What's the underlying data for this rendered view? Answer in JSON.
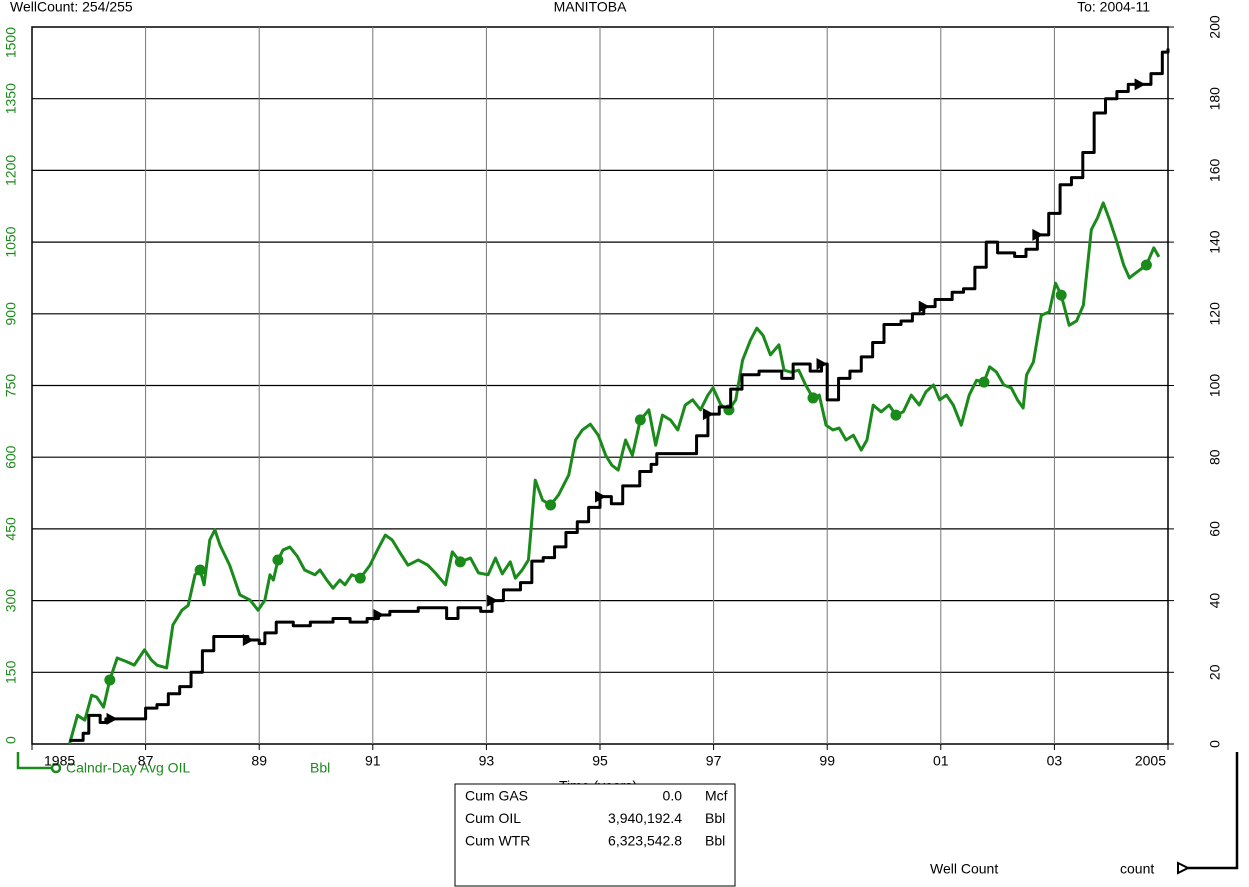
{
  "chart_data": {
    "type": "line",
    "title": "MANITOBA",
    "header_left": "WellCount:  254/255",
    "header_right": "To:  2004-11",
    "xlabel": "Time (years)",
    "xlim": [
      1985,
      2005
    ],
    "xticks": [
      1985,
      {
        "value": 1987,
        "label": "87"
      },
      {
        "value": 1989,
        "label": "89"
      },
      {
        "value": 1991,
        "label": "91"
      },
      {
        "value": 1993,
        "label": "93"
      },
      {
        "value": 1995,
        "label": "95"
      },
      {
        "value": 1997,
        "label": "97"
      },
      {
        "value": 1999,
        "label": "99"
      },
      {
        "value": 2001,
        "label": "01"
      },
      {
        "value": 2003,
        "label": "03"
      },
      2005
    ],
    "ylim": [
      0,
      1500
    ],
    "yticks": [
      0,
      150,
      300,
      450,
      600,
      750,
      900,
      1050,
      1200,
      1350,
      1500
    ],
    "y2lim": [
      0,
      200
    ],
    "y2ticks": [
      0,
      20,
      40,
      60,
      80,
      100,
      120,
      140,
      160,
      180,
      200
    ],
    "grid": true,
    "series": [
      {
        "name": "Calndr-Day Avg OIL",
        "unit": "Bbl",
        "color": "#1a8a1a",
        "marker": "circle",
        "x": [
          1985.66,
          1985.8,
          1985.93,
          1986.05,
          1986.14,
          1986.26,
          1986.37,
          1986.5,
          1986.67,
          1986.8,
          1986.98,
          1987.1,
          1987.2,
          1987.37,
          1987.48,
          1987.64,
          1987.75,
          1987.87,
          1987.96,
          1988.03,
          1988.13,
          1988.22,
          1988.31,
          1988.48,
          1988.66,
          1988.84,
          1988.98,
          1989.1,
          1989.19,
          1989.25,
          1989.33,
          1989.42,
          1989.54,
          1989.67,
          1989.8,
          1989.98,
          1990.07,
          1990.19,
          1990.3,
          1990.42,
          1990.51,
          1990.63,
          1990.78,
          1990.95,
          1991.1,
          1991.22,
          1991.34,
          1991.48,
          1991.62,
          1991.8,
          1991.97,
          1992.1,
          1992.28,
          1992.4,
          1992.54,
          1992.72,
          1992.86,
          1993.03,
          1993.16,
          1993.28,
          1993.42,
          1993.51,
          1993.63,
          1993.74,
          1993.86,
          1993.99,
          1994.13,
          1994.27,
          1994.45,
          1994.57,
          1994.69,
          1994.83,
          1994.97,
          1995.1,
          1995.21,
          1995.32,
          1995.45,
          1995.57,
          1995.71,
          1995.86,
          1995.98,
          1996.1,
          1996.24,
          1996.37,
          1996.5,
          1996.63,
          1996.77,
          1996.9,
          1996.99,
          1997.13,
          1997.27,
          1997.39,
          1997.51,
          1997.65,
          1997.76,
          1997.87,
          1998.0,
          1998.15,
          1998.24,
          1998.36,
          1998.5,
          1998.62,
          1998.75,
          1998.86,
          1998.98,
          1999.1,
          1999.21,
          1999.33,
          1999.46,
          1999.6,
          1999.7,
          1999.81,
          1999.95,
          2000.09,
          2000.21,
          2000.34,
          2000.48,
          2000.62,
          2000.74,
          2000.87,
          2000.98,
          2001.1,
          2001.22,
          2001.36,
          2001.5,
          2001.63,
          2001.76,
          2001.86,
          2001.98,
          2002.11,
          2002.24,
          2002.35,
          2002.45,
          2002.51,
          2002.63,
          2002.77,
          2002.91,
          2003.02,
          2003.12,
          2003.26,
          2003.39,
          2003.51,
          2003.65,
          2003.76,
          2003.86,
          2003.97,
          2004.09,
          2004.22,
          2004.32,
          2004.45,
          2004.62,
          2004.75,
          2004.84
        ],
        "values": [
          0,
          60,
          50,
          102,
          98,
          77,
          134,
          180,
          172,
          165,
          197,
          176,
          165,
          159,
          249,
          280,
          290,
          354,
          364,
          333,
          427,
          448,
          416,
          374,
          312,
          301,
          280,
          301,
          354,
          343,
          385,
          406,
          412,
          393,
          364,
          354,
          364,
          343,
          326,
          343,
          333,
          354,
          347,
          374,
          410,
          437,
          427,
          400,
          374,
          385,
          374,
          358,
          333,
          402,
          381,
          389,
          358,
          354,
          389,
          356,
          381,
          347,
          364,
          385,
          552,
          510,
          500,
          521,
          563,
          636,
          657,
          669,
          646,
          604,
          583,
          573,
          636,
          604,
          678,
          699,
          625,
          688,
          678,
          657,
          709,
          720,
          699,
          730,
          745,
          709,
          699,
          720,
          803,
          845,
          870,
          855,
          814,
          835,
          782,
          778,
          782,
          751,
          724,
          730,
          667,
          657,
          661,
          636,
          646,
          615,
          636,
          709,
          695,
          709,
          688,
          695,
          730,
          709,
          737,
          751,
          720,
          730,
          709,
          667,
          730,
          761,
          757,
          789,
          778,
          751,
          745,
          720,
          703,
          772,
          799,
          897,
          904,
          964,
          939,
          876,
          885,
          918,
          1076,
          1101,
          1132,
          1097,
          1054,
          1002,
          975,
          987,
          1002,
          1038,
          1019
        ]
      },
      {
        "name": "Well Count",
        "unit": "count",
        "color": "#000000",
        "marker": "triangle",
        "axis": "y2",
        "step": true,
        "x": [
          1985.66,
          1985.9,
          1986.0,
          1986.2,
          1986.3,
          1986.4,
          1987.0,
          1987.2,
          1987.4,
          1987.6,
          1987.8,
          1988.0,
          1988.2,
          1988.5,
          1988.8,
          1989.0,
          1989.1,
          1989.3,
          1989.6,
          1989.9,
          1990.3,
          1990.6,
          1990.9,
          1991.1,
          1991.3,
          1991.5,
          1991.8,
          1992.2,
          1992.3,
          1992.5,
          1992.7,
          1992.9,
          1993.1,
          1993.3,
          1993.6,
          1993.8,
          1994.0,
          1994.2,
          1994.4,
          1994.6,
          1994.8,
          1995.0,
          1995.2,
          1995.4,
          1995.7,
          1995.9,
          1996.0,
          1996.3,
          1996.5,
          1996.7,
          1996.9,
          1997.1,
          1997.3,
          1997.5,
          1997.8,
          1998.0,
          1998.2,
          1998.4,
          1998.7,
          1998.9,
          1999.0,
          1999.2,
          1999.4,
          1999.6,
          1999.8,
          2000.0,
          2000.3,
          2000.5,
          2000.7,
          2000.9,
          2001.2,
          2001.4,
          2001.6,
          2001.8,
          2002.0,
          2002.3,
          2002.5,
          2002.7,
          2002.9,
          2003.1,
          2003.3,
          2003.5,
          2003.7,
          2003.9,
          2004.1,
          2004.3,
          2004.5,
          2004.7,
          2004.9,
          2005.0
        ],
        "values": [
          1,
          3,
          8,
          6,
          7,
          7,
          10,
          11,
          14,
          16,
          20,
          26,
          30,
          30,
          29,
          28,
          31,
          34,
          33,
          34,
          35,
          34,
          35,
          36,
          37,
          37,
          38,
          38,
          35,
          38,
          38,
          37,
          40,
          43,
          45,
          51,
          52,
          55,
          59,
          62,
          66,
          69,
          67,
          72,
          76,
          78,
          81,
          81,
          81,
          86,
          92,
          94,
          99,
          103,
          104,
          104,
          102,
          106,
          104,
          106,
          96,
          102,
          104,
          108,
          112,
          117,
          118,
          120,
          122,
          124,
          126,
          127,
          133,
          140,
          137,
          136,
          138,
          142,
          148,
          156,
          158,
          165,
          176,
          180,
          182,
          184,
          184,
          187,
          193,
          194
        ]
      }
    ],
    "summary": [
      [
        "Cum GAS",
        "0.0",
        "Mcf"
      ],
      [
        "Cum OIL",
        "3,940,192.4",
        "Bbl"
      ],
      [
        "Cum WTR",
        "6,323,542.8",
        "Bbl"
      ]
    ]
  }
}
